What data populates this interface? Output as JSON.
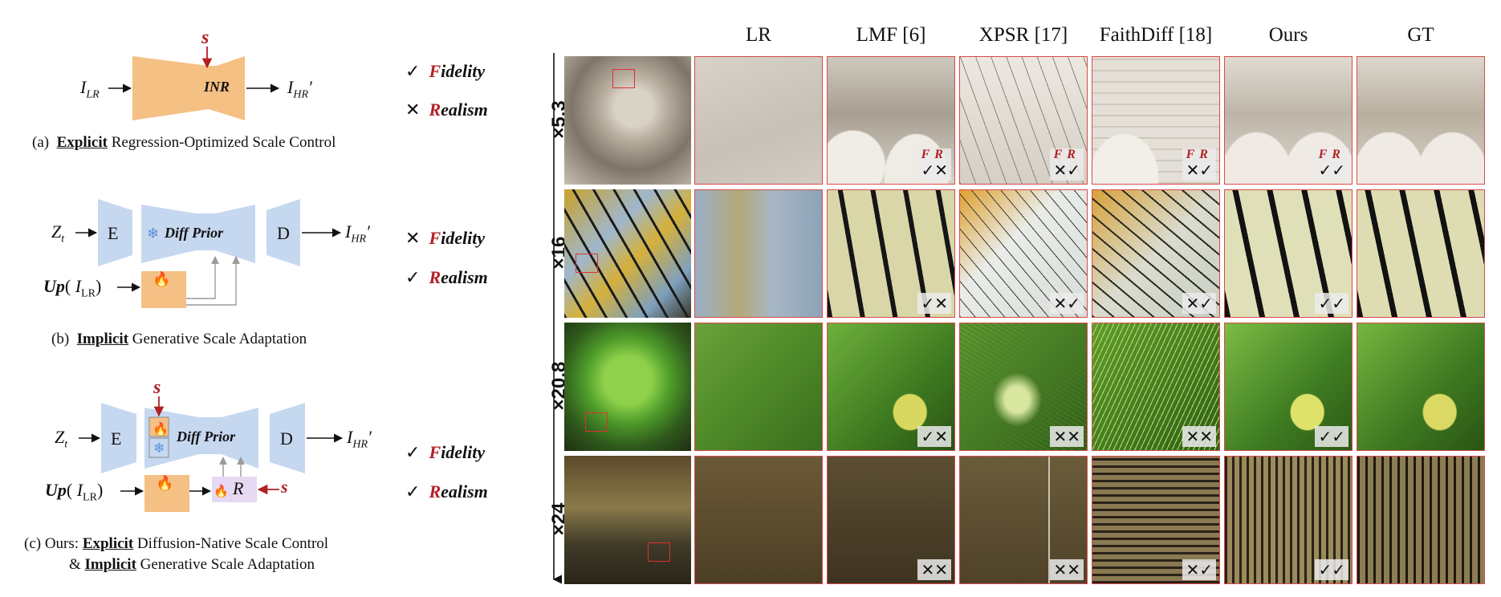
{
  "panels": {
    "a": {
      "scale_symbol": "s",
      "input_label": "I",
      "input_sub": "LR",
      "block_label": "INR",
      "output_label": "I",
      "output_sub": "HR",
      "output_prime": "′",
      "fidelity_mark": "✓",
      "realism_mark": "✕",
      "caption_prefix": "(a)",
      "caption_bold": "Explicit",
      "caption_rest": "Regression-Optimized Scale Control"
    },
    "b": {
      "latent_label": "Z",
      "latent_sub": "t",
      "encoder_label": "E",
      "prior_label": "Diff Prior",
      "decoder_label": "D",
      "output_label": "I",
      "output_sub": "HR",
      "output_prime": "′",
      "up_label": "Up",
      "up_arg": "I",
      "up_arg_sub": "LR",
      "fidelity_mark": "✕",
      "realism_mark": "✓",
      "caption_prefix": "(b)",
      "caption_bold": "Implicit",
      "caption_rest": "Generative Scale Adaptation"
    },
    "c": {
      "scale_symbol": "s",
      "latent_label": "Z",
      "latent_sub": "t",
      "encoder_label": "E",
      "prior_label": "Diff Prior",
      "decoder_label": "D",
      "output_label": "I",
      "output_sub": "HR",
      "output_prime": "′",
      "up_label": "Up",
      "up_arg": "I",
      "up_arg_sub": "LR",
      "r_label": "R",
      "scale_symbol_right": "s",
      "fidelity_mark": "✓",
      "realism_mark": "✓",
      "caption_line1_prefix": "(c) Ours:",
      "caption_line1_bold": "Explicit",
      "caption_line1_rest": "Diffusion-Native Scale Control",
      "caption_line2_prefix": "&",
      "caption_line2_bold": "Implicit",
      "caption_line2_rest": "Generative Scale Adaptation"
    }
  },
  "legend": {
    "fidelity_initial": "F",
    "fidelity_rest": "idelity",
    "realism_initial": "R",
    "realism_rest": "ealism"
  },
  "columns": [
    "LR",
    "LMF [6]",
    "XPSR [17]",
    "FaithDiff [18]",
    "Ours",
    "GT"
  ],
  "rows": [
    {
      "scale": "×5.3",
      "show_fr": true,
      "badges": [
        "",
        "✓✕",
        "✕✓",
        "✕✓",
        "✓✓",
        ""
      ]
    },
    {
      "scale": "×16",
      "show_fr": false,
      "badges": [
        "",
        "✓✕",
        "✕✓",
        "✕✓",
        "✓✓",
        ""
      ]
    },
    {
      "scale": "×20.8",
      "show_fr": false,
      "badges": [
        "",
        "✓✕",
        "✕✕",
        "✕✕",
        "✓✓",
        ""
      ]
    },
    {
      "scale": "×24",
      "show_fr": false,
      "badges": [
        "",
        "✕✕",
        "✕✕",
        "✕✓",
        "✓✓",
        ""
      ]
    }
  ],
  "badge_fr": "FR",
  "colors": {
    "orange": "#f5c084",
    "blue": "#c6d8f0",
    "red": "#b21f24",
    "purple": "#e6d9f3",
    "tile_border": "#d84a4a"
  }
}
